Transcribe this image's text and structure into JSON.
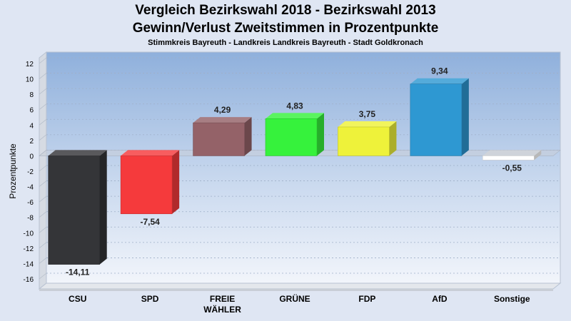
{
  "chart_data": {
    "type": "bar",
    "title": "Vergleich Bezirkswahl 2018 - Bezirkswahl 2013",
    "title2": "Gewinn/Verlust Zweitstimmen in Prozentpunkte",
    "subtitle": "Stimmkreis Bayreuth - Landkreis Landkreis Bayreuth - Stadt Goldkronach",
    "ylabel": "Prozentpunkte",
    "xlabel": "",
    "ylim": [
      -16,
      12
    ],
    "yticks": [
      "12",
      "10",
      "8",
      "6",
      "4",
      "2",
      "0",
      "-2",
      "-4",
      "-6",
      "-8",
      "-10",
      "-12",
      "-14",
      "-16"
    ],
    "grid": true,
    "categories": [
      "CSU",
      "SPD",
      "FREIE WÄHLER",
      "GRÜNE",
      "FDP",
      "AfD",
      "Sonstige"
    ],
    "category_lines": [
      [
        "CSU"
      ],
      [
        "SPD"
      ],
      [
        "FREIE",
        "WÄHLER"
      ],
      [
        "GRÜNE"
      ],
      [
        "FDP"
      ],
      [
        "AfD"
      ],
      [
        "Sonstige"
      ]
    ],
    "values": [
      -14.11,
      -7.54,
      4.29,
      4.83,
      3.75,
      9.34,
      -0.55
    ],
    "value_labels": [
      "-14,11",
      "-7,54",
      "4,29",
      "4,83",
      "3,75",
      "9,34",
      "-0,55"
    ],
    "colors": [
      "#343538",
      "#f53a3c",
      "#946268",
      "#36f23c",
      "#eef23a",
      "#2e98d2",
      "#ffffff"
    ]
  }
}
